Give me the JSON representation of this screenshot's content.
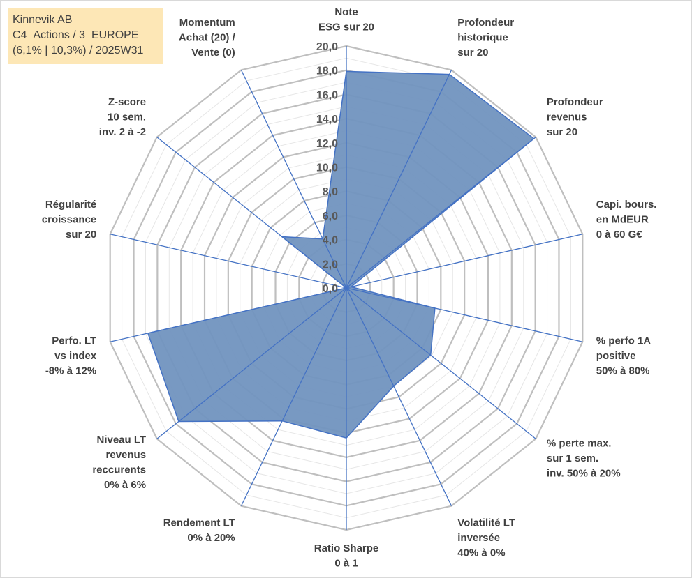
{
  "info_box": {
    "line1": "Kinnevik AB",
    "line2": "C4_Actions / 3_EUROPE",
    "line3": "(6,1% | 10,3%) / 2025W31"
  },
  "colors": {
    "fill": "#7194bf",
    "stroke": "#4472c4",
    "grid_major": "#bfbfbf",
    "grid_minor": "#e6e6e6",
    "info_bg": "#fde7b6"
  },
  "chart_data": {
    "type": "radar",
    "title": "",
    "range": [
      0,
      20
    ],
    "tick_labels": [
      "0,0",
      "2,0",
      "4,0",
      "6,0",
      "8,0",
      "10,0",
      "12,0",
      "14,0",
      "16,0",
      "18,0",
      "20,0"
    ],
    "axes": [
      {
        "label": [
          "Note",
          "ESG sur 20"
        ],
        "value": 17.9
      },
      {
        "label": [
          "Profondeur",
          "historique",
          "sur 20"
        ],
        "value": 19.6
      },
      {
        "label": [
          "Profondeur",
          "revenus",
          "sur 20"
        ],
        "value": 19.8
      },
      {
        "label": [
          "Capi. bours.",
          "en MdEUR",
          "0 à 60 G€"
        ],
        "value": 0.4
      },
      {
        "label": [
          "% perfo 1A",
          "positive",
          "50% à 80%"
        ],
        "value": 7.5
      },
      {
        "label": [
          "% perte max.",
          "sur 1 sem.",
          "inv. 50% à 20%"
        ],
        "value": 8.9
      },
      {
        "label": [
          "Volatilité LT",
          "inversée",
          "40% à 0%"
        ],
        "value": 9.0
      },
      {
        "label": [
          "Ratio Sharpe",
          "0 à 1"
        ],
        "value": 12.4
      },
      {
        "label": [
          "Rendement LT",
          "0% à 20%"
        ],
        "value": 12.2
      },
      {
        "label": [
          "Niveau LT",
          "revenus",
          "reccurents",
          "0% à 6%"
        ],
        "value": 17.7
      },
      {
        "label": [
          "Perfo. LT",
          "vs index",
          "-8% à 12%"
        ],
        "value": 16.8
      },
      {
        "label": [
          "Régularité",
          "croissance",
          "sur 20"
        ],
        "value": 0.0
      },
      {
        "label": [
          "Z-score",
          "10 sem.",
          "inv. 2 à -2"
        ],
        "value": 6.8
      },
      {
        "label": [
          "Momentum",
          "Achat (20) /",
          "Vente (0)"
        ],
        "value": 4.5
      }
    ]
  }
}
